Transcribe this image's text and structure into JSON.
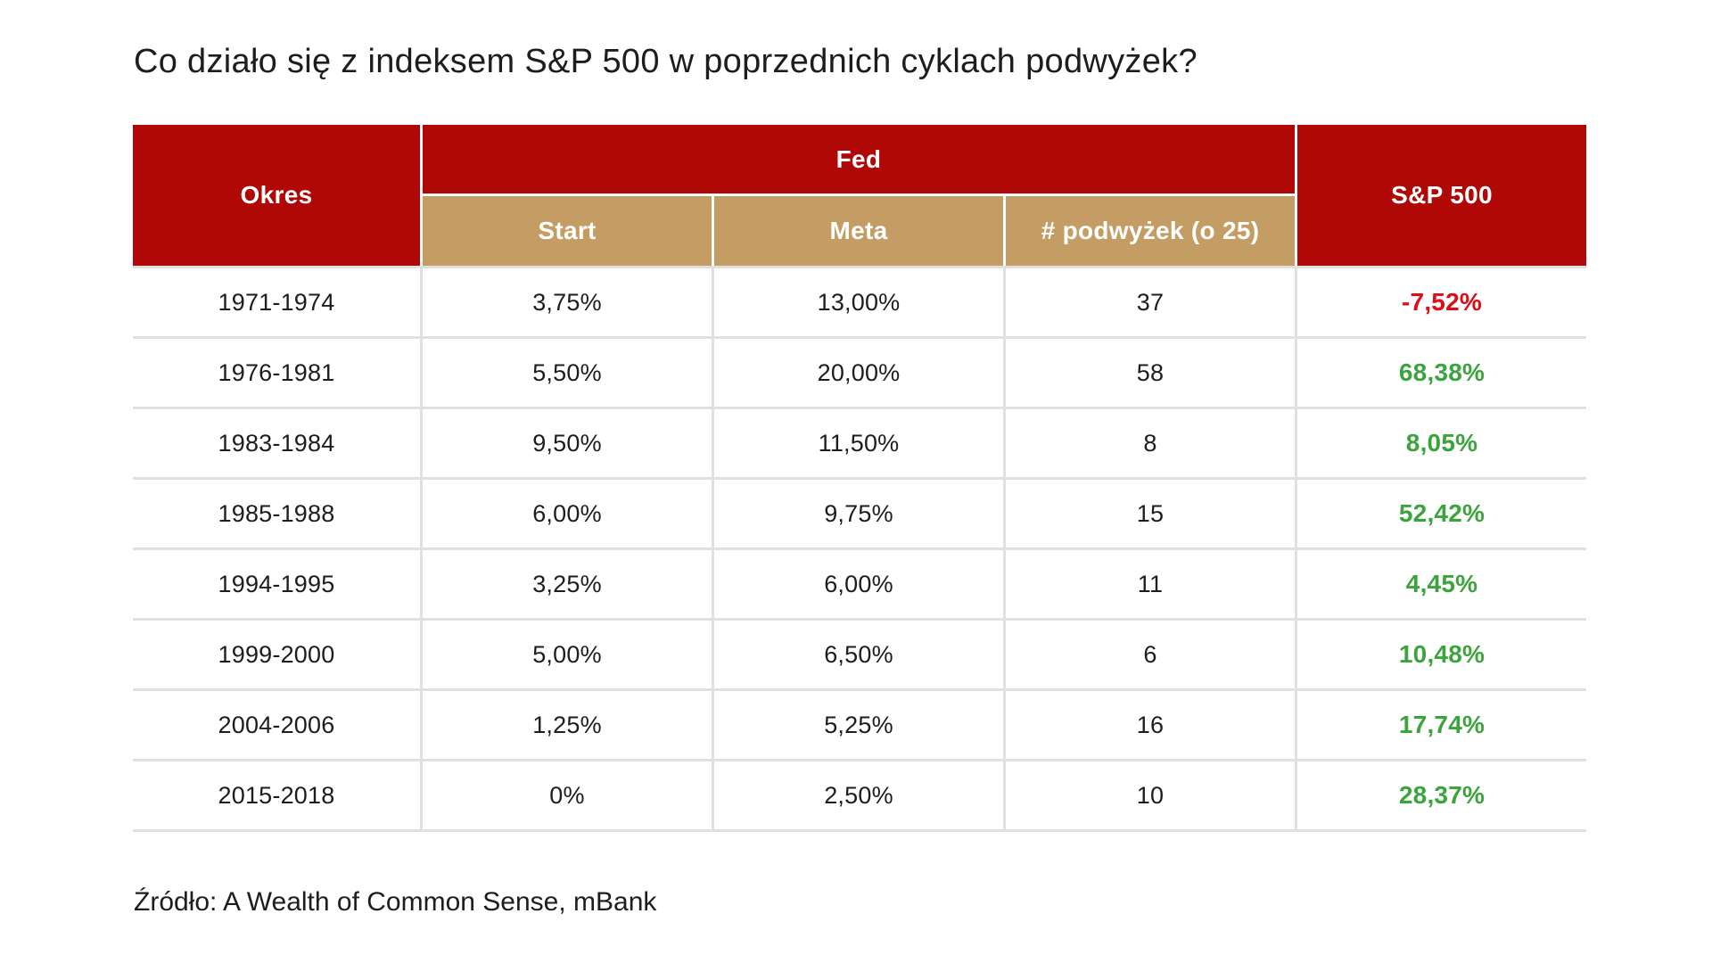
{
  "page": {
    "title": "Co działo się z indeksem S&P 500 w poprzednich cyklach podwyżek?",
    "source": "Źródło: A Wealth of Common Sense, mBank"
  },
  "colors": {
    "header_red": "#b00707",
    "header_tan": "#c49d64",
    "positive_green": "#3ca43c",
    "negative_red": "#de0d15",
    "gridline_gray": "#e0e0e0",
    "text_dark": "#1d1d1b"
  },
  "table": {
    "headers": {
      "okres": "Okres",
      "fed": "Fed",
      "start": "Start",
      "meta": "Meta",
      "podwyzki": "# podwyżek (o 25)",
      "sp500": "S&P 500"
    },
    "rows": [
      {
        "okres": "1971-1974",
        "start": "3,75%",
        "meta": "13,00%",
        "podwyzki": "37",
        "sp500": "-7,52%",
        "trend": "negative"
      },
      {
        "okres": "1976-1981",
        "start": "5,50%",
        "meta": "20,00%",
        "podwyzki": "58",
        "sp500": "68,38%",
        "trend": "positive"
      },
      {
        "okres": "1983-1984",
        "start": "9,50%",
        "meta": "11,50%",
        "podwyzki": "8",
        "sp500": "8,05%",
        "trend": "positive"
      },
      {
        "okres": "1985-1988",
        "start": "6,00%",
        "meta": "9,75%",
        "podwyzki": "15",
        "sp500": "52,42%",
        "trend": "positive"
      },
      {
        "okres": "1994-1995",
        "start": "3,25%",
        "meta": "6,00%",
        "podwyzki": "11",
        "sp500": "4,45%",
        "trend": "positive"
      },
      {
        "okres": "1999-2000",
        "start": "5,00%",
        "meta": "6,50%",
        "podwyzki": "6",
        "sp500": "10,48%",
        "trend": "positive"
      },
      {
        "okres": "2004-2006",
        "start": "1,25%",
        "meta": "5,25%",
        "podwyzki": "16",
        "sp500": "17,74%",
        "trend": "positive"
      },
      {
        "okres": "2015-2018",
        "start": "0%",
        "meta": "2,50%",
        "podwyzki": "10",
        "sp500": "28,37%",
        "trend": "positive"
      }
    ]
  },
  "chart_data": {
    "type": "table",
    "title": "Co działo się z indeksem S&P 500 w poprzednich cyklach podwyżek?",
    "column_groups": [
      {
        "label": "Okres",
        "span": 1
      },
      {
        "label": "Fed",
        "span": 3
      },
      {
        "label": "S&P 500",
        "span": 1
      }
    ],
    "columns": [
      "Okres",
      "Start",
      "Meta",
      "# podwyżek (o 25)",
      "S&P 500"
    ],
    "rows": [
      [
        "1971-1974",
        "3,75%",
        "13,00%",
        37,
        "-7,52%"
      ],
      [
        "1976-1981",
        "5,50%",
        "20,00%",
        58,
        "68,38%"
      ],
      [
        "1983-1984",
        "9,50%",
        "11,50%",
        8,
        "8,05%"
      ],
      [
        "1985-1988",
        "6,00%",
        "9,75%",
        15,
        "52,42%"
      ],
      [
        "1994-1995",
        "3,25%",
        "6,00%",
        11,
        "4,45%"
      ],
      [
        "1999-2000",
        "5,00%",
        "6,50%",
        6,
        "10,48%"
      ],
      [
        "2004-2006",
        "1,25%",
        "5,25%",
        16,
        "17,74%"
      ],
      [
        "2015-2018",
        "0%",
        "2,50%",
        10,
        "28,37%"
      ]
    ],
    "sp500_values_pct": [
      -7.52,
      68.38,
      8.05,
      52.42,
      4.45,
      10.48,
      17.74,
      28.37
    ],
    "source": "Źródło: A Wealth of Common Sense, mBank"
  }
}
